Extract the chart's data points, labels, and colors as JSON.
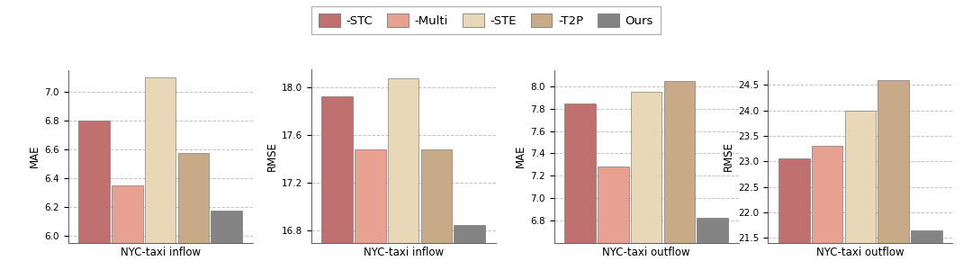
{
  "subplots": [
    {
      "title": "NYC-taxi inflow",
      "ylabel": "MAE",
      "values": [
        6.8,
        6.35,
        7.1,
        6.57,
        6.17
      ],
      "ylim": [
        5.95,
        7.15
      ],
      "yticks": [
        6.0,
        6.2,
        6.4,
        6.6,
        6.8,
        7.0
      ]
    },
    {
      "title": "NYC-taxi inflow",
      "ylabel": "RMSE",
      "values": [
        17.93,
        17.48,
        18.08,
        17.48,
        16.85
      ],
      "ylim": [
        16.7,
        18.15
      ],
      "yticks": [
        16.8,
        17.2,
        17.6,
        18.0
      ]
    },
    {
      "title": "NYC-taxi outflow",
      "ylabel": "MAE",
      "values": [
        7.85,
        7.28,
        7.95,
        8.05,
        6.82
      ],
      "ylim": [
        6.6,
        8.15
      ],
      "yticks": [
        6.8,
        7.0,
        7.2,
        7.4,
        7.6,
        7.8,
        8.0
      ]
    },
    {
      "title": "NYC-taxi outflow",
      "ylabel": "RMSE",
      "values": [
        23.05,
        23.3,
        24.0,
        24.6,
        21.65
      ],
      "ylim": [
        21.4,
        24.8
      ],
      "yticks": [
        21.5,
        22.0,
        22.5,
        23.0,
        23.5,
        24.0,
        24.5
      ]
    }
  ],
  "bar_colors": [
    "#c17070",
    "#e8a090",
    "#e8d8b8",
    "#c8aa88",
    "#848484"
  ],
  "legend_labels": [
    "-STC",
    "-Multi",
    "-STE",
    "-T2P",
    "Ours"
  ],
  "bar_width": 0.16,
  "bar_gap": 0.01,
  "background_color": "#ffffff",
  "grid_color": "#aaaaaa",
  "legend_edgecolor": "#999999"
}
